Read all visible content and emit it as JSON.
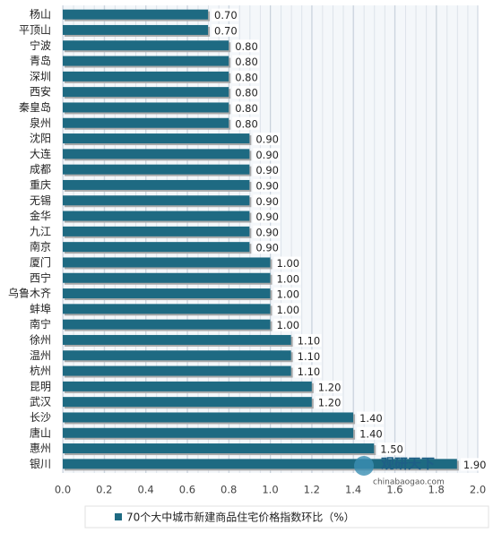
{
  "chart_data": {
    "type": "bar",
    "orientation": "horizontal",
    "categories": [
      "杨山",
      "平顶山",
      "宁波",
      "青岛",
      "深圳",
      "西安",
      "秦皇岛",
      "泉州",
      "沈阳",
      "大连",
      "成都",
      "重庆",
      "无锡",
      "金华",
      "九江",
      "南京",
      "厦门",
      "西宁",
      "乌鲁木齐",
      "蚌埠",
      "南宁",
      "徐州",
      "温州",
      "杭州",
      "昆明",
      "武汉",
      "长沙",
      "唐山",
      "惠州",
      "银川"
    ],
    "series": [
      {
        "name": "70个大中城市新建商品住宅价格指数环比（%）",
        "color": "#1e6a82",
        "values": [
          0.7,
          0.7,
          0.8,
          0.8,
          0.8,
          0.8,
          0.8,
          0.8,
          0.9,
          0.9,
          0.9,
          0.9,
          0.9,
          0.9,
          0.9,
          0.9,
          1,
          1,
          1,
          1,
          1,
          1.1,
          1.1,
          1.1,
          1.2,
          1.2,
          1.4,
          1.4,
          1.5,
          1.9
        ],
        "value_labels": [
          "0.70",
          "0.70",
          "0.80",
          "0.80",
          "0.80",
          "0.80",
          "0.80",
          "0.80",
          "0.90",
          "0.90",
          "0.90",
          "0.90",
          "0.90",
          "0.90",
          "0.90",
          "0.90",
          "1.00",
          "1.00",
          "1.00",
          "1.00",
          "1.00",
          "1.10",
          "1.10",
          "1.10",
          "1.20",
          "1.20",
          "1.40",
          "1.40",
          "1.50",
          "1.90"
        ]
      }
    ],
    "xlim": [
      0,
      2
    ],
    "xticks": [
      {
        "value": 0,
        "label": "0.0"
      },
      0.2,
      0.4,
      0.6,
      0.8,
      {
        "value": 1,
        "label": "1.0"
      },
      1.2,
      1.4,
      1.6,
      1.8,
      {
        "value": 2,
        "label": "2.0"
      }
    ],
    "grid": true,
    "legend": "bottom"
  },
  "watermark": {
    "name": "观研天下",
    "url": "chinabaogao.com"
  }
}
